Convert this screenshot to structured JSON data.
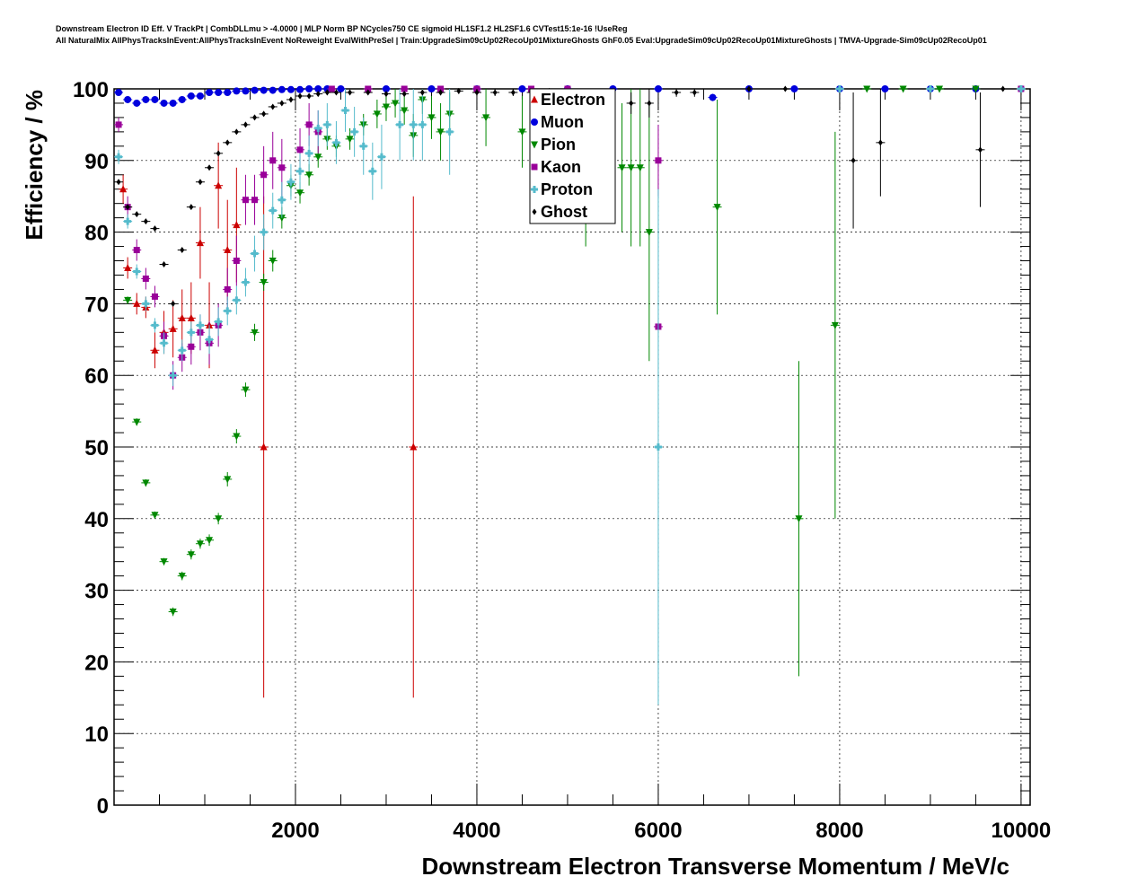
{
  "title_lines": [
    "Downstream Electron ID Eff. V TrackPt | CombDLLmu > -4.0000 | MLP Norm BP NCycles750 CE sigmoid HL1SF1.2 HL2SF1.6 CVTest15:1e-16 !UseReg",
    "All NaturalMix AllPhysTracksInEvent:AllPhysTracksInEvent NoReweight EvalWithPreSel | Train:UpgradeSim09cUp02RecoUp01MixtureGhosts GhF0.05 Eval:UpgradeSim09cUp02RecoUp01MixtureGhosts | TMVA-Upgrade-Sim09cUp02RecoUp01"
  ],
  "chart_data": {
    "type": "scatter",
    "xlabel": "Downstream Electron Transverse Momentum / MeV/c",
    "ylabel": "Efficiency / %",
    "xlim": [
      0,
      10100
    ],
    "ylim": [
      0,
      100
    ],
    "x_ticks": [
      2000,
      4000,
      6000,
      8000,
      10000
    ],
    "y_ticks": [
      0,
      10,
      20,
      30,
      40,
      50,
      60,
      70,
      80,
      90,
      100
    ],
    "grid": true,
    "legend_position": "top-center",
    "series": [
      {
        "name": "Electron",
        "color": "#cc0000",
        "marker": "triangle-up",
        "points": [
          [
            100,
            86,
            2
          ],
          [
            150,
            75,
            1.5
          ],
          [
            250,
            70,
            1.5
          ],
          [
            350,
            69.5,
            1.5
          ],
          [
            450,
            63.5,
            2.5
          ],
          [
            550,
            66,
            3
          ],
          [
            650,
            66.5,
            4
          ],
          [
            750,
            68,
            4
          ],
          [
            850,
            68,
            5
          ],
          [
            950,
            78.5,
            5
          ],
          [
            1050,
            67,
            6
          ],
          [
            1150,
            86.5,
            6
          ],
          [
            1250,
            77.5,
            7
          ],
          [
            1350,
            81,
            8
          ],
          [
            1650,
            50,
            35
          ],
          [
            3300,
            50,
            35
          ]
        ]
      },
      {
        "name": "Muon",
        "color": "#0000dd",
        "marker": "circle",
        "points": [
          [
            50,
            99.5,
            0.2
          ],
          [
            150,
            98.5,
            0.3
          ],
          [
            250,
            98,
            0.3
          ],
          [
            350,
            98.5,
            0.3
          ],
          [
            450,
            98.5,
            0.3
          ],
          [
            550,
            98,
            0.3
          ],
          [
            650,
            98,
            0.3
          ],
          [
            750,
            98.5,
            0.3
          ],
          [
            850,
            99,
            0.3
          ],
          [
            950,
            99,
            0.3
          ],
          [
            1050,
            99.5,
            0.2
          ],
          [
            1150,
            99.5,
            0.2
          ],
          [
            1250,
            99.5,
            0.2
          ],
          [
            1350,
            99.7,
            0.2
          ],
          [
            1450,
            99.7,
            0.2
          ],
          [
            1550,
            99.8,
            0.1
          ],
          [
            1650,
            99.8,
            0.1
          ],
          [
            1750,
            99.8,
            0.1
          ],
          [
            1850,
            99.9,
            0.1
          ],
          [
            1950,
            99.9,
            0.1
          ],
          [
            2050,
            99.9,
            0.1
          ],
          [
            2150,
            100,
            0
          ],
          [
            2250,
            100,
            0
          ],
          [
            2350,
            100,
            0
          ],
          [
            2500,
            100,
            0
          ],
          [
            3000,
            100,
            0
          ],
          [
            3500,
            100,
            0
          ],
          [
            4000,
            100,
            0
          ],
          [
            4500,
            100,
            0
          ],
          [
            5000,
            100,
            0
          ],
          [
            5500,
            100,
            0
          ],
          [
            6000,
            100,
            0
          ],
          [
            6600,
            98.8,
            0.5
          ],
          [
            7000,
            100,
            0
          ],
          [
            7500,
            100,
            0
          ],
          [
            8000,
            100,
            0
          ],
          [
            8500,
            100,
            0
          ],
          [
            9000,
            100,
            0
          ],
          [
            9500,
            100,
            0
          ],
          [
            10000,
            100,
            0
          ]
        ]
      },
      {
        "name": "Pion",
        "color": "#008800",
        "marker": "triangle-down",
        "points": [
          [
            150,
            70.5,
            0.5
          ],
          [
            250,
            53.5,
            0.5
          ],
          [
            350,
            45,
            0.5
          ],
          [
            450,
            40.5,
            0.5
          ],
          [
            550,
            34,
            0.5
          ],
          [
            650,
            27,
            0.6
          ],
          [
            750,
            32,
            0.6
          ],
          [
            850,
            35,
            0.7
          ],
          [
            950,
            36.5,
            0.7
          ],
          [
            1050,
            37,
            0.8
          ],
          [
            1150,
            40,
            0.8
          ],
          [
            1250,
            45.5,
            1
          ],
          [
            1350,
            51.5,
            1
          ],
          [
            1450,
            58,
            1
          ],
          [
            1550,
            66,
            1.2
          ],
          [
            1650,
            73,
            1.2
          ],
          [
            1750,
            76,
            1.5
          ],
          [
            1850,
            82,
            1.5
          ],
          [
            1950,
            86.5,
            1.5
          ],
          [
            2050,
            85.5,
            1.5
          ],
          [
            2150,
            88,
            1.5
          ],
          [
            2250,
            90.5,
            1.5
          ],
          [
            2350,
            93,
            1.5
          ],
          [
            2450,
            92,
            1.5
          ],
          [
            2600,
            93,
            1.5
          ],
          [
            2750,
            95,
            1.5
          ],
          [
            2900,
            96.5,
            2
          ],
          [
            3000,
            97.5,
            2
          ],
          [
            3100,
            98,
            2
          ],
          [
            3200,
            97,
            2
          ],
          [
            3300,
            93.5,
            3
          ],
          [
            3400,
            98.5,
            2
          ],
          [
            3500,
            96,
            3
          ],
          [
            3600,
            94,
            4
          ],
          [
            3700,
            96.5,
            3
          ],
          [
            4100,
            96,
            4
          ],
          [
            4500,
            94,
            5
          ],
          [
            4900,
            95,
            6
          ],
          [
            5200,
            85,
            7
          ],
          [
            5600,
            89,
            9
          ],
          [
            5700,
            89,
            11
          ],
          [
            5800,
            89,
            11
          ],
          [
            5900,
            80,
            18
          ],
          [
            6650,
            83.5,
            15
          ],
          [
            7550,
            40,
            22
          ],
          [
            7950,
            67,
            27
          ],
          [
            8300,
            100,
            0
          ],
          [
            8700,
            100,
            0
          ],
          [
            9100,
            100,
            0
          ],
          [
            9500,
            100,
            0
          ]
        ]
      },
      {
        "name": "Kaon",
        "color": "#990099",
        "marker": "square",
        "points": [
          [
            50,
            95,
            1
          ],
          [
            150,
            83.5,
            1.5
          ],
          [
            250,
            77.5,
            1.5
          ],
          [
            350,
            73.5,
            1.5
          ],
          [
            450,
            71,
            1.5
          ],
          [
            550,
            65.5,
            2
          ],
          [
            650,
            60,
            2
          ],
          [
            750,
            62.5,
            2
          ],
          [
            850,
            64,
            2.5
          ],
          [
            950,
            66,
            2.5
          ],
          [
            1050,
            64.5,
            3
          ],
          [
            1150,
            67,
            3
          ],
          [
            1250,
            72,
            3
          ],
          [
            1350,
            76,
            3.5
          ],
          [
            1450,
            84.5,
            3.5
          ],
          [
            1550,
            84.5,
            3.5
          ],
          [
            1650,
            88,
            4
          ],
          [
            1750,
            90,
            4
          ],
          [
            1850,
            89,
            4
          ],
          [
            2050,
            91.5,
            3
          ],
          [
            2150,
            95,
            3
          ],
          [
            2250,
            94,
            3
          ],
          [
            2400,
            100,
            0
          ],
          [
            2800,
            100,
            0
          ],
          [
            3200,
            100,
            0
          ],
          [
            3600,
            100,
            0
          ],
          [
            4000,
            100,
            0
          ],
          [
            4600,
            100,
            0
          ],
          [
            5000,
            100,
            0
          ],
          [
            6000,
            66.8,
            0.5
          ],
          [
            6000,
            90,
            5
          ],
          [
            10000,
            100,
            0
          ]
        ]
      },
      {
        "name": "Proton",
        "color": "#55bbcc",
        "marker": "cross",
        "points": [
          [
            50,
            90.5,
            1
          ],
          [
            150,
            81.5,
            1
          ],
          [
            250,
            74.5,
            1
          ],
          [
            350,
            70,
            1
          ],
          [
            450,
            67,
            1
          ],
          [
            550,
            64.5,
            1.5
          ],
          [
            650,
            60,
            1.5
          ],
          [
            750,
            63.5,
            1.5
          ],
          [
            850,
            66,
            1.5
          ],
          [
            950,
            67,
            1.5
          ],
          [
            1050,
            65,
            2
          ],
          [
            1150,
            67.5,
            2
          ],
          [
            1250,
            69,
            2
          ],
          [
            1350,
            70.5,
            2
          ],
          [
            1450,
            73,
            2
          ],
          [
            1550,
            77,
            2.5
          ],
          [
            1650,
            80,
            2.5
          ],
          [
            1750,
            83,
            2.5
          ],
          [
            1850,
            84.5,
            2.5
          ],
          [
            1950,
            87,
            2.5
          ],
          [
            2050,
            88.5,
            2.5
          ],
          [
            2150,
            91,
            2.5
          ],
          [
            2250,
            94.5,
            2.5
          ],
          [
            2350,
            95,
            3
          ],
          [
            2450,
            92.5,
            3
          ],
          [
            2550,
            97,
            3
          ],
          [
            2650,
            94,
            3.5
          ],
          [
            2750,
            92,
            4
          ],
          [
            2850,
            88.5,
            4
          ],
          [
            2950,
            90.5,
            4.5
          ],
          [
            3150,
            95,
            5
          ],
          [
            3300,
            95,
            5
          ],
          [
            3400,
            95,
            5
          ],
          [
            3700,
            94,
            6
          ],
          [
            6000,
            50,
            36
          ],
          [
            8000,
            100,
            0
          ],
          [
            9000,
            100,
            0
          ],
          [
            10000,
            100,
            0
          ]
        ]
      },
      {
        "name": "Ghost",
        "color": "#000000",
        "marker": "diamond",
        "points": [
          [
            50,
            87,
            0.3
          ],
          [
            150,
            83.5,
            0.3
          ],
          [
            250,
            82.5,
            0.3
          ],
          [
            350,
            81.5,
            0.3
          ],
          [
            450,
            80.5,
            0.3
          ],
          [
            550,
            75.5,
            0.3
          ],
          [
            650,
            70,
            0.3
          ],
          [
            750,
            77.5,
            0.3
          ],
          [
            850,
            83.5,
            0.3
          ],
          [
            950,
            87,
            0.3
          ],
          [
            1050,
            89,
            0.3
          ],
          [
            1150,
            91,
            0.3
          ],
          [
            1250,
            92.5,
            0.3
          ],
          [
            1350,
            94,
            0.3
          ],
          [
            1450,
            95,
            0.3
          ],
          [
            1550,
            96,
            0.3
          ],
          [
            1650,
            96.5,
            0.3
          ],
          [
            1750,
            97.5,
            0.3
          ],
          [
            1850,
            98,
            0.3
          ],
          [
            1950,
            98.5,
            0.3
          ],
          [
            2050,
            99,
            0.3
          ],
          [
            2150,
            99,
            0.3
          ],
          [
            2250,
            99.3,
            0.3
          ],
          [
            2350,
            99.5,
            0.3
          ],
          [
            2450,
            99.5,
            0.3
          ],
          [
            2600,
            99.5,
            0.3
          ],
          [
            2800,
            99.5,
            0.3
          ],
          [
            3000,
            99.3,
            0.3
          ],
          [
            3200,
            99.3,
            0.3
          ],
          [
            3400,
            99.5,
            0.3
          ],
          [
            3600,
            99.5,
            0.4
          ],
          [
            3800,
            99.7,
            0.4
          ],
          [
            4000,
            99.5,
            0.5
          ],
          [
            4200,
            99.5,
            0.5
          ],
          [
            4400,
            99.5,
            0.5
          ],
          [
            4600,
            99.5,
            0.5
          ],
          [
            4800,
            99.7,
            0.5
          ],
          [
            5000,
            99.5,
            0.5
          ],
          [
            5200,
            99.5,
            0.6
          ],
          [
            5400,
            99.5,
            0.6
          ],
          [
            5700,
            98,
            1.5
          ],
          [
            5900,
            98,
            2
          ],
          [
            6200,
            99.5,
            0.6
          ],
          [
            6400,
            99.5,
            0.6
          ],
          [
            7000,
            100,
            0
          ],
          [
            7400,
            100,
            0
          ],
          [
            8150,
            90,
            9.5
          ],
          [
            8450,
            92.5,
            7.5
          ],
          [
            9550,
            91.5,
            8
          ],
          [
            9800,
            100,
            0
          ]
        ]
      }
    ]
  }
}
